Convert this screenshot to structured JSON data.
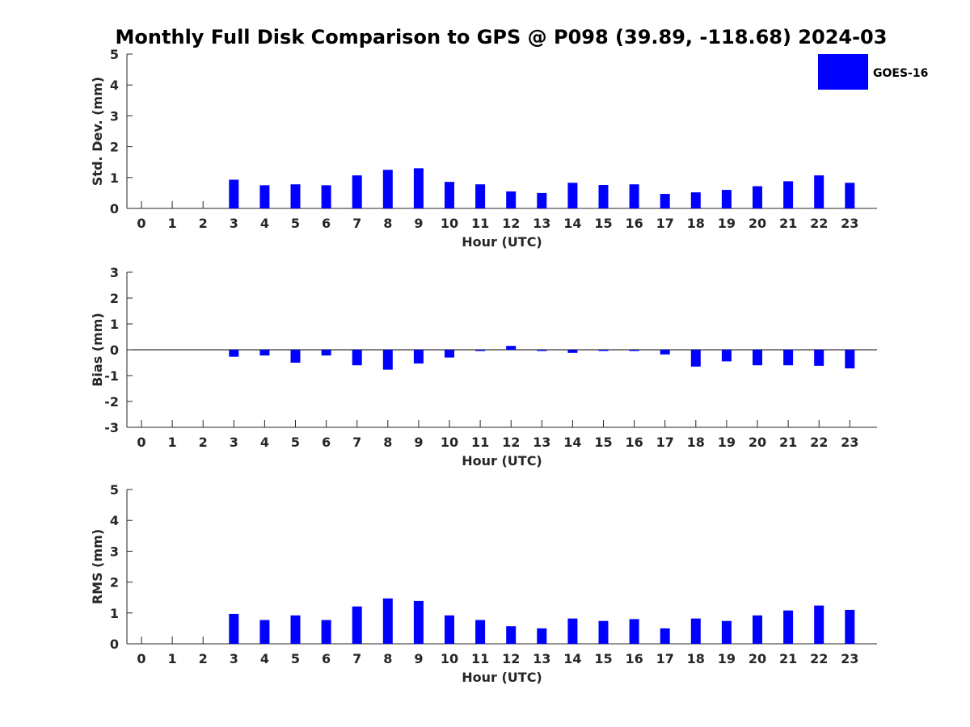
{
  "chart_data": {
    "type": "bar",
    "title": "Monthly Full Disk Comparison to GPS @ P098 (39.89, -118.68) 2024-03",
    "legend": {
      "entries": [
        "GOES-16"
      ],
      "placement": "top-right"
    },
    "series_color": "#0000ff",
    "panels": [
      {
        "name": "std",
        "xlabel": "Hour (UTC)",
        "ylabel": "Std. Dev. (mm)",
        "ylim": [
          0,
          5
        ],
        "yticks": [
          0,
          1,
          2,
          3,
          4,
          5
        ],
        "categories": [
          "0",
          "1",
          "2",
          "3",
          "4",
          "5",
          "6",
          "7",
          "8",
          "9",
          "10",
          "11",
          "12",
          "13",
          "14",
          "15",
          "16",
          "17",
          "18",
          "19",
          "20",
          "21",
          "22",
          "23"
        ],
        "values": [
          null,
          null,
          null,
          0.93,
          0.75,
          0.78,
          0.75,
          1.07,
          1.25,
          1.3,
          0.86,
          0.78,
          0.55,
          0.5,
          0.83,
          0.76,
          0.78,
          0.47,
          0.52,
          0.6,
          0.72,
          0.88,
          1.07,
          0.83
        ]
      },
      {
        "name": "bias",
        "xlabel": "Hour (UTC)",
        "ylabel": "Bias (mm)",
        "ylim": [
          -3,
          3
        ],
        "yticks": [
          -3,
          -2,
          -1,
          0,
          1,
          2,
          3
        ],
        "categories": [
          "0",
          "1",
          "2",
          "3",
          "4",
          "5",
          "6",
          "7",
          "8",
          "9",
          "10",
          "11",
          "12",
          "13",
          "14",
          "15",
          "16",
          "17",
          "18",
          "19",
          "20",
          "21",
          "22",
          "23"
        ],
        "values": [
          null,
          null,
          null,
          -0.27,
          -0.22,
          -0.5,
          -0.22,
          -0.6,
          -0.77,
          -0.53,
          -0.3,
          -0.02,
          0.15,
          -0.02,
          -0.12,
          -0.02,
          -0.02,
          -0.18,
          -0.65,
          -0.45,
          -0.6,
          -0.6,
          -0.62,
          -0.72
        ]
      },
      {
        "name": "rms",
        "xlabel": "Hour (UTC)",
        "ylabel": "RMS (mm)",
        "ylim": [
          0,
          5
        ],
        "yticks": [
          0,
          1,
          2,
          3,
          4,
          5
        ],
        "categories": [
          "0",
          "1",
          "2",
          "3",
          "4",
          "5",
          "6",
          "7",
          "8",
          "9",
          "10",
          "11",
          "12",
          "13",
          "14",
          "15",
          "16",
          "17",
          "18",
          "19",
          "20",
          "21",
          "22",
          "23"
        ],
        "values": [
          null,
          null,
          null,
          0.97,
          0.77,
          0.92,
          0.77,
          1.21,
          1.47,
          1.39,
          0.92,
          0.77,
          0.57,
          0.5,
          0.82,
          0.74,
          0.8,
          0.5,
          0.82,
          0.74,
          0.92,
          1.08,
          1.24,
          1.1
        ]
      }
    ]
  }
}
